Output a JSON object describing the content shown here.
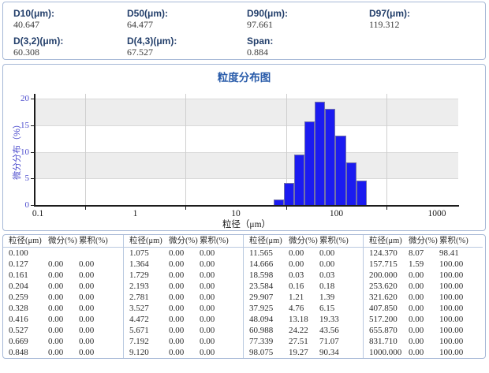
{
  "stats": {
    "items": [
      {
        "label": "D10(μm):",
        "value": "40.647"
      },
      {
        "label": "D50(μm):",
        "value": "64.477"
      },
      {
        "label": "D90(μm):",
        "value": "97.661"
      },
      {
        "label": "D97(μm):",
        "value": "119.312"
      },
      {
        "label": "D(3,2)(μm):",
        "value": "60.308"
      },
      {
        "label": "D(4,3)(μm):",
        "value": "67.527"
      },
      {
        "label": "Span:",
        "value": "0.884"
      }
    ]
  },
  "chart_data": {
    "type": "bar",
    "title": "粒度分布图",
    "xlabel": "粒径（μm）",
    "ylabel": "微分分布（%）",
    "x_scale": "log",
    "xlim": [
      0.1,
      1600
    ],
    "ylim": [
      0,
      21
    ],
    "y_ticks": [
      0,
      5,
      10,
      15,
      20
    ],
    "x_tick_labels": [
      "0.1",
      "1",
      "10",
      "100",
      "1000"
    ],
    "x_tick_values": [
      0.1,
      1,
      10,
      100,
      1000
    ],
    "x_gridlines": [
      0.3162,
      3.162,
      31.62,
      316.2
    ],
    "shaded_bands": [
      [
        5,
        10
      ],
      [
        15,
        20
      ]
    ],
    "grid": true,
    "legend": "none",
    "bars": [
      {
        "from": 23.584,
        "to": 29.907,
        "value": 1.2
      },
      {
        "from": 29.907,
        "to": 37.925,
        "value": 4.3
      },
      {
        "from": 37.925,
        "to": 48.094,
        "value": 9.6
      },
      {
        "from": 48.094,
        "to": 60.988,
        "value": 15.9
      },
      {
        "from": 60.988,
        "to": 77.339,
        "value": 19.5
      },
      {
        "from": 77.339,
        "to": 98.075,
        "value": 18.2
      },
      {
        "from": 98.075,
        "to": 124.37,
        "value": 13.2
      },
      {
        "from": 124.37,
        "to": 157.715,
        "value": 8.1
      },
      {
        "from": 157.715,
        "to": 200.0,
        "value": 4.7
      }
    ]
  },
  "table": {
    "headers": [
      "粒径(μm)",
      "微分(%)",
      "累积(%)"
    ],
    "groups": [
      [
        [
          "0.100",
          "",
          ""
        ],
        [
          "0.127",
          "0.00",
          "0.00"
        ],
        [
          "0.161",
          "0.00",
          "0.00"
        ],
        [
          "0.204",
          "0.00",
          "0.00"
        ],
        [
          "0.259",
          "0.00",
          "0.00"
        ],
        [
          "0.328",
          "0.00",
          "0.00"
        ],
        [
          "0.416",
          "0.00",
          "0.00"
        ],
        [
          "0.527",
          "0.00",
          "0.00"
        ],
        [
          "0.669",
          "0.00",
          "0.00"
        ],
        [
          "0.848",
          "0.00",
          "0.00"
        ]
      ],
      [
        [
          "1.075",
          "0.00",
          "0.00"
        ],
        [
          "1.364",
          "0.00",
          "0.00"
        ],
        [
          "1.729",
          "0.00",
          "0.00"
        ],
        [
          "2.193",
          "0.00",
          "0.00"
        ],
        [
          "2.781",
          "0.00",
          "0.00"
        ],
        [
          "3.527",
          "0.00",
          "0.00"
        ],
        [
          "4.472",
          "0.00",
          "0.00"
        ],
        [
          "5.671",
          "0.00",
          "0.00"
        ],
        [
          "7.192",
          "0.00",
          "0.00"
        ],
        [
          "9.120",
          "0.00",
          "0.00"
        ]
      ],
      [
        [
          "11.565",
          "0.00",
          "0.00"
        ],
        [
          "14.666",
          "0.00",
          "0.00"
        ],
        [
          "18.598",
          "0.03",
          "0.03"
        ],
        [
          "23.584",
          "0.16",
          "0.18"
        ],
        [
          "29.907",
          "1.21",
          "1.39"
        ],
        [
          "37.925",
          "4.76",
          "6.15"
        ],
        [
          "48.094",
          "13.18",
          "19.33"
        ],
        [
          "60.988",
          "24.22",
          "43.56"
        ],
        [
          "77.339",
          "27.51",
          "71.07"
        ],
        [
          "98.075",
          "19.27",
          "90.34"
        ]
      ],
      [
        [
          "124.370",
          "8.07",
          "98.41"
        ],
        [
          "157.715",
          "1.59",
          "100.00"
        ],
        [
          "200.000",
          "0.00",
          "100.00"
        ],
        [
          "253.620",
          "0.00",
          "100.00"
        ],
        [
          "321.620",
          "0.00",
          "100.00"
        ],
        [
          "407.850",
          "0.00",
          "100.00"
        ],
        [
          "517.200",
          "0.00",
          "100.00"
        ],
        [
          "655.870",
          "0.00",
          "100.00"
        ],
        [
          "831.710",
          "0.00",
          "100.00"
        ],
        [
          "1000.000",
          "0.00",
          "100.00"
        ]
      ]
    ]
  },
  "colors": {
    "panel_border": "#a6b8d6",
    "stat_label": "#223e6a",
    "value_text": "#3c3c3c",
    "chart_title": "#2a5caa",
    "y_axis_text": "#4c4ccd",
    "bar_fill": "#1b1bf0",
    "bar_border": "#7272aa",
    "band_gray": "#ededed",
    "grid_gray": "#cfcfcf"
  }
}
